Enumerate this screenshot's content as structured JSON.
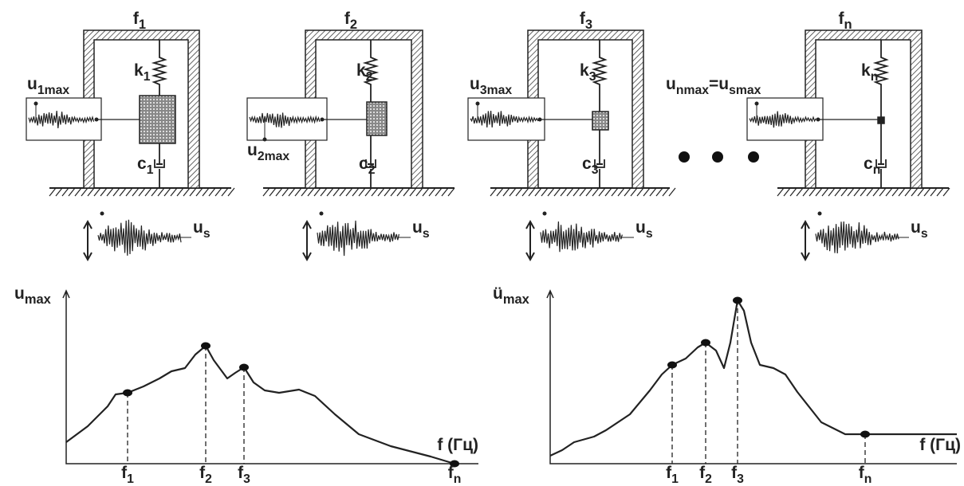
{
  "oscillators": [
    {
      "title": [
        {
          "text": "f",
          "sub": "1"
        }
      ],
      "k": [
        {
          "text": "k",
          "sub": "1"
        }
      ],
      "c": [
        {
          "text": "c",
          "sub": "1"
        }
      ],
      "u": [
        {
          "text": "u",
          "sub": "1max"
        }
      ],
      "us": [
        {
          "text": "u",
          "sub": "s"
        }
      ]
    },
    {
      "title": [
        {
          "text": "f",
          "sub": "2"
        }
      ],
      "k": [
        {
          "text": "k",
          "sub": "2"
        }
      ],
      "c": [
        {
          "text": "c",
          "sub": "2"
        }
      ],
      "u": [
        {
          "text": "u",
          "sub": "2max"
        }
      ],
      "us": [
        {
          "text": "u",
          "sub": "s"
        }
      ]
    },
    {
      "title": [
        {
          "text": "f",
          "sub": "3"
        }
      ],
      "k": [
        {
          "text": "k",
          "sub": "3"
        }
      ],
      "c": [
        {
          "text": "c",
          "sub": "3"
        }
      ],
      "u": [
        {
          "text": "u",
          "sub": "3max"
        }
      ],
      "us": [
        {
          "text": "u",
          "sub": "s"
        }
      ]
    },
    {
      "title": [
        {
          "text": "f",
          "sub": "n"
        }
      ],
      "k": [
        {
          "text": "k",
          "sub": "n"
        }
      ],
      "c": [
        {
          "text": "c",
          "sub": "n"
        }
      ],
      "u": [
        {
          "text": "u",
          "sub": "nmax"
        },
        {
          "text": "=u",
          "sub": "smax"
        }
      ],
      "us": [
        {
          "text": "u",
          "sub": "s"
        }
      ]
    }
  ],
  "displacement_plot": {
    "y_label": [
      {
        "text": "u",
        "sub": "max"
      }
    ],
    "x_label": [
      {
        "text": "f (Гц)"
      }
    ],
    "markers": [
      [
        {
          "text": "f",
          "sub": "1"
        }
      ],
      [
        {
          "text": "f",
          "sub": "2"
        }
      ],
      [
        {
          "text": "f",
          "sub": "3"
        }
      ],
      [
        {
          "text": "f",
          "sub": "n"
        }
      ]
    ]
  },
  "acceleration_plot": {
    "y_label": [
      {
        "text": "ü",
        "sub": "max"
      }
    ],
    "x_label": [
      {
        "text": "f (Гц)"
      }
    ],
    "markers": [
      [
        {
          "text": "f",
          "sub": "1"
        }
      ],
      [
        {
          "text": "f",
          "sub": "2"
        }
      ],
      [
        {
          "text": "f",
          "sub": "3"
        }
      ],
      [
        {
          "text": "f",
          "sub": "n"
        }
      ]
    ]
  }
}
